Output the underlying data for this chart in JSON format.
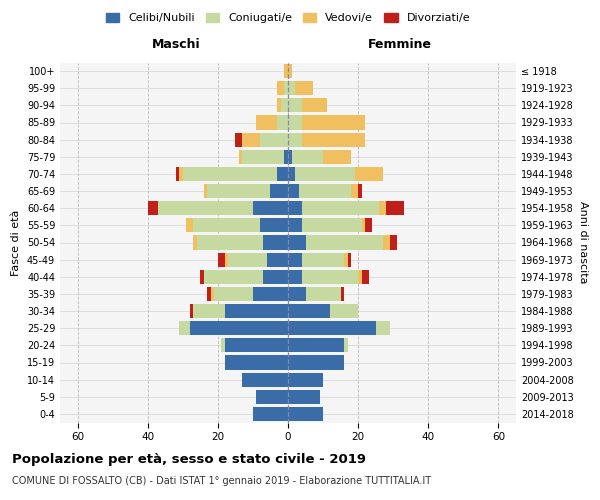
{
  "age_groups": [
    "0-4",
    "5-9",
    "10-14",
    "15-19",
    "20-24",
    "25-29",
    "30-34",
    "35-39",
    "40-44",
    "45-49",
    "50-54",
    "55-59",
    "60-64",
    "65-69",
    "70-74",
    "75-79",
    "80-84",
    "85-89",
    "90-94",
    "95-99",
    "100+"
  ],
  "birth_years": [
    "2014-2018",
    "2009-2013",
    "2004-2008",
    "1999-2003",
    "1994-1998",
    "1989-1993",
    "1984-1988",
    "1979-1983",
    "1974-1978",
    "1969-1973",
    "1964-1968",
    "1959-1963",
    "1954-1958",
    "1949-1953",
    "1944-1948",
    "1939-1943",
    "1934-1938",
    "1929-1933",
    "1924-1928",
    "1919-1923",
    "≤ 1918"
  ],
  "males": {
    "celibi": [
      10,
      9,
      13,
      18,
      18,
      28,
      18,
      10,
      7,
      6,
      7,
      8,
      10,
      5,
      3,
      1,
      0,
      0,
      0,
      0,
      0
    ],
    "coniugati": [
      0,
      0,
      0,
      0,
      1,
      3,
      9,
      11,
      17,
      11,
      19,
      19,
      27,
      18,
      27,
      12,
      8,
      3,
      2,
      1,
      0
    ],
    "vedovi": [
      0,
      0,
      0,
      0,
      0,
      0,
      0,
      1,
      0,
      1,
      1,
      2,
      0,
      1,
      1,
      1,
      5,
      6,
      1,
      2,
      1
    ],
    "divorziati": [
      0,
      0,
      0,
      0,
      0,
      0,
      1,
      1,
      1,
      2,
      0,
      0,
      3,
      0,
      1,
      0,
      2,
      0,
      0,
      0,
      0
    ]
  },
  "females": {
    "nubili": [
      10,
      9,
      10,
      16,
      16,
      25,
      12,
      5,
      4,
      4,
      5,
      4,
      4,
      3,
      2,
      1,
      0,
      0,
      0,
      0,
      0
    ],
    "coniugate": [
      0,
      0,
      0,
      0,
      1,
      4,
      8,
      10,
      16,
      12,
      22,
      17,
      22,
      15,
      17,
      9,
      4,
      4,
      4,
      2,
      0
    ],
    "vedove": [
      0,
      0,
      0,
      0,
      0,
      0,
      0,
      0,
      1,
      1,
      2,
      1,
      2,
      2,
      8,
      8,
      18,
      18,
      7,
      5,
      1
    ],
    "divorziate": [
      0,
      0,
      0,
      0,
      0,
      0,
      0,
      1,
      2,
      1,
      2,
      2,
      5,
      1,
      0,
      0,
      0,
      0,
      0,
      0,
      0
    ]
  },
  "colors": {
    "celibi": "#3a6ca8",
    "coniugati": "#c5d9a0",
    "vedovi": "#f0c060",
    "divorziati": "#c0201a"
  },
  "xlim": 65,
  "title": "Popolazione per età, sesso e stato civile - 2019",
  "subtitle": "COMUNE DI FOSSALTO (CB) - Dati ISTAT 1° gennaio 2019 - Elaborazione TUTTITALIA.IT",
  "xlabel_left": "Maschi",
  "xlabel_right": "Femmine",
  "ylabel": "Fasce di età",
  "ylabel_right": "Anni di nascita",
  "legend_labels": [
    "Celibi/Nubili",
    "Coniugati/e",
    "Vedovi/e",
    "Divorziati/e"
  ],
  "bg_color": "#f5f5f5"
}
